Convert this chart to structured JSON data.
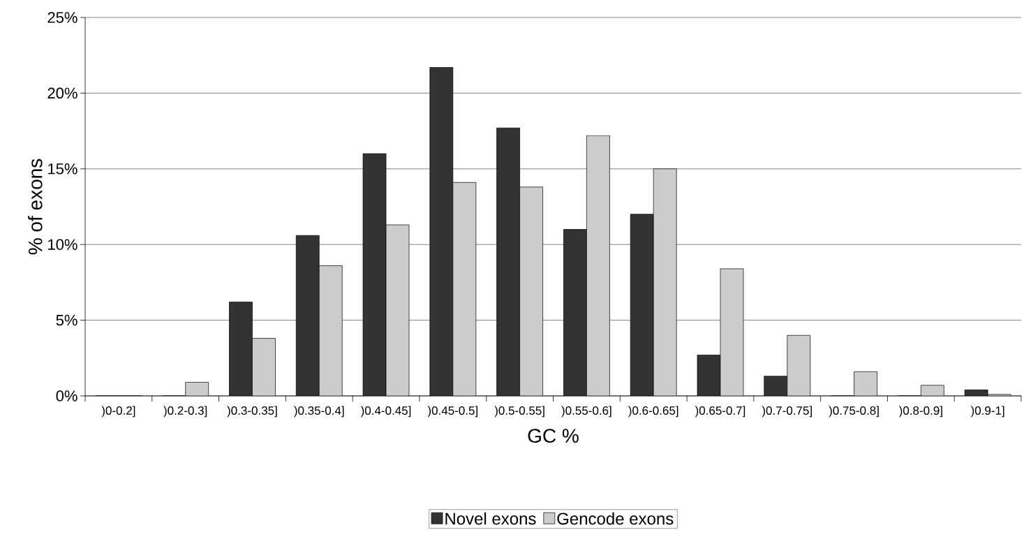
{
  "chart_data": {
    "type": "bar",
    "xlabel": "GC %",
    "ylabel": "% of exons",
    "categories": [
      ")0-0.2]",
      ")0.2-0.3]",
      ")0.3-0.35]",
      ")0.35-0.4]",
      ")0.4-0.45]",
      ")0.45-0.5]",
      ")0.5-0.55]",
      ")0.55-0.6]",
      ")0.6-0.65]",
      ")0.65-0.7]",
      ")0.7-0.75]",
      ")0.75-0.8]",
      ")0.8-0.9]",
      ")0.9-1]"
    ],
    "series": [
      {
        "name": "Novel exons",
        "color": "#333333",
        "values": [
          0,
          0,
          6.2,
          10.6,
          16.0,
          21.7,
          17.7,
          11.0,
          12.0,
          2.7,
          1.3,
          0,
          0,
          0.4
        ]
      },
      {
        "name": "Gencode exons",
        "color": "#cccccc",
        "values": [
          0,
          0.9,
          3.8,
          8.6,
          11.3,
          14.1,
          13.8,
          17.2,
          15.0,
          8.4,
          4.0,
          1.6,
          0.7,
          0.1
        ]
      }
    ],
    "ylim": [
      0,
      25
    ],
    "yticks": [
      {
        "value": 0,
        "label": "0%"
      },
      {
        "value": 5,
        "label": "5%"
      },
      {
        "value": 10,
        "label": "10%"
      },
      {
        "value": 15,
        "label": "15%"
      },
      {
        "value": 20,
        "label": "20%"
      },
      {
        "value": 25,
        "label": "25%"
      }
    ],
    "grid": "y",
    "legend": "bottom"
  }
}
